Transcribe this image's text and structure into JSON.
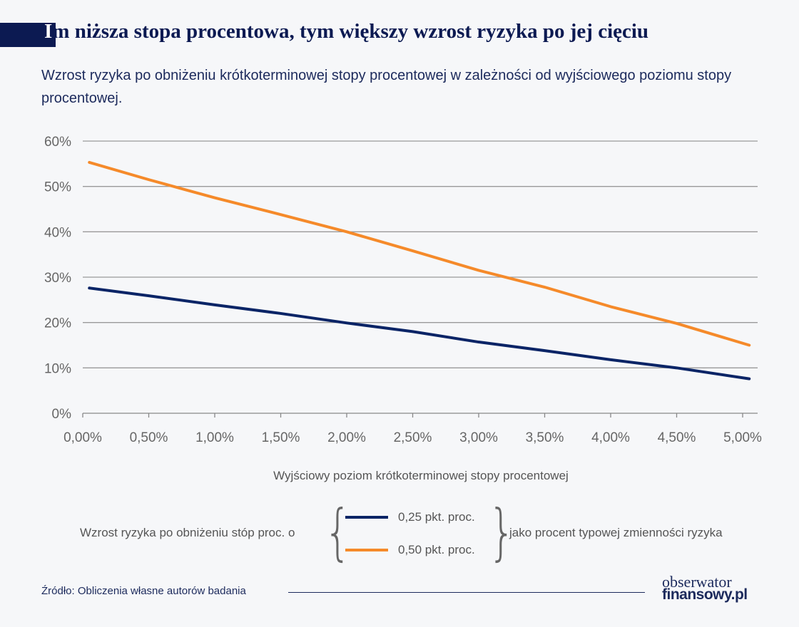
{
  "header": {
    "title_first_letter": "I",
    "title_rest": "m niższa stopa procentowa, tym większy wzrost ryzyka po jej cięciu",
    "subtitle": "Wzrost ryzyka po obniżeniu krótkoterminowej stopy procentowej w zależności od wyjściowego poziomu stopy procentowej."
  },
  "chart_data": {
    "type": "line",
    "xlabel": "Wyjściowy poziom krótkoterminowej stopy procentowej",
    "ylabel": "",
    "xlim": [
      0,
      5.0
    ],
    "ylim": [
      0,
      60
    ],
    "x_ticks": [
      0,
      0.5,
      1.0,
      1.5,
      2.0,
      2.5,
      3.0,
      3.5,
      4.0,
      4.5,
      5.0
    ],
    "x_tick_labels": [
      "0,00%",
      "0,50%",
      "1,00%",
      "1,50%",
      "2,00%",
      "2,50%",
      "3,00%",
      "3,50%",
      "4,00%",
      "4,50%",
      "5,00%"
    ],
    "y_ticks": [
      0,
      10,
      20,
      30,
      40,
      50,
      60
    ],
    "y_tick_labels": [
      "0%",
      "10%",
      "20%",
      "30%",
      "40%",
      "50%",
      "60%"
    ],
    "grid": "horizontal",
    "legend_placement": "bottom",
    "x": [
      0.05,
      0.5,
      1.0,
      1.5,
      2.0,
      2.5,
      3.0,
      3.5,
      4.0,
      4.5,
      5.05
    ],
    "series": [
      {
        "name": "0,25 pkt. proc.",
        "color": "#0a2466",
        "values": [
          27.6,
          25.9,
          23.9,
          22.0,
          19.9,
          18.0,
          15.7,
          13.8,
          11.8,
          10.0,
          7.6
        ]
      },
      {
        "name": "0,50 pkt. proc.",
        "color": "#f58a2a",
        "values": [
          55.3,
          51.5,
          47.5,
          43.8,
          40.0,
          35.8,
          31.5,
          27.8,
          23.5,
          19.8,
          15.0
        ]
      }
    ]
  },
  "legend": {
    "prefix": "Wzrost ryzyka po obniżeniu stóp proc. o",
    "suffix": "jako procent typowej zmienności ryzyka"
  },
  "footer": {
    "source": "Źródło: Obliczenia własne autorów badania",
    "logo_line1": "obserwator",
    "logo_line2": "finansowy.pl"
  }
}
